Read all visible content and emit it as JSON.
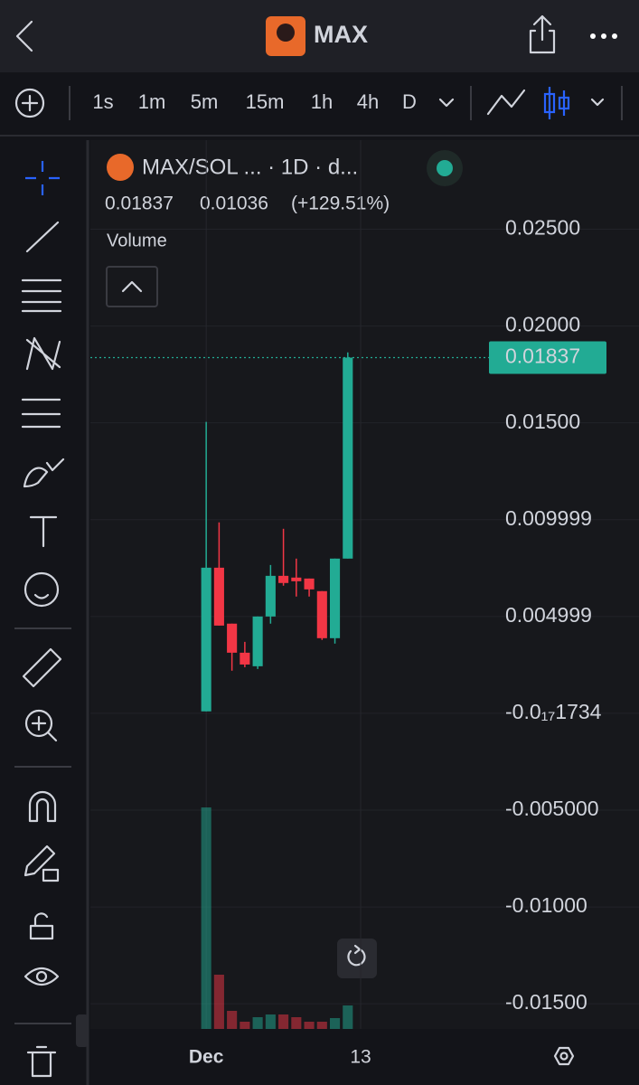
{
  "app_bar": {
    "title": "MAX"
  },
  "toolbar": {
    "intervals": [
      "1s",
      "1m",
      "5m",
      "15m",
      "1h",
      "4h",
      "D"
    ],
    "active_interval": 6
  },
  "chart_data": {
    "type": "candlestick",
    "title": "MAX/SOL ... · 1D · d...",
    "last_price": 0.01837,
    "change": 0.01036,
    "change_pct_label": "(+129.51%)",
    "volume_label": "Volume",
    "open": [
      0.0001,
      0.00752,
      0.00463,
      0.00313,
      0.00243,
      0.005,
      0.0071,
      0.00701,
      0.00696,
      0.00631,
      0.00388,
      0.00799
    ],
    "high": [
      0.01505,
      0.00986,
      0.00463,
      0.00369,
      0.005,
      0.00766,
      0.00953,
      0.00799,
      0.00696,
      0.00631,
      0.00799,
      0.01864
    ],
    "low": [
      0.0001,
      0.00453,
      0.0022,
      0.00238,
      0.00229,
      0.00463,
      0.00659,
      0.00603,
      0.00603,
      0.00379,
      0.0036,
      0.00799
    ],
    "close": [
      0.00752,
      0.00453,
      0.00313,
      0.00252,
      0.005,
      0.0071,
      0.00673,
      0.00682,
      0.0064,
      0.00388,
      0.00799,
      0.01837
    ],
    "volume": [
      245,
      60,
      20,
      8,
      13,
      16,
      16,
      13,
      8,
      8,
      12,
      26
    ],
    "colors": {
      "up": "#22ab94",
      "down": "#f23645"
    },
    "ylim": [
      -0.0163,
      0.0296
    ],
    "yticks": [
      {
        "value": 0.025,
        "label": "0.02500"
      },
      {
        "value": 0.02,
        "label": "0.02000"
      },
      {
        "value": 0.015,
        "label": "0.01500"
      },
      0.009999,
      0.004999,
      {
        "value": -1.734e-18,
        "label": "-0.0₁₇1734"
      },
      {
        "value": -0.005,
        "label": "-0.005000"
      },
      {
        "value": -0.01,
        "label": "-0.01000"
      },
      {
        "value": -0.015,
        "label": "-0.01500"
      }
    ],
    "xlim": [
      -9,
      21.9
    ],
    "xticks": [
      {
        "value": 0,
        "label": "Dec"
      },
      {
        "value": 12,
        "label": "13"
      }
    ],
    "grid": true
  }
}
